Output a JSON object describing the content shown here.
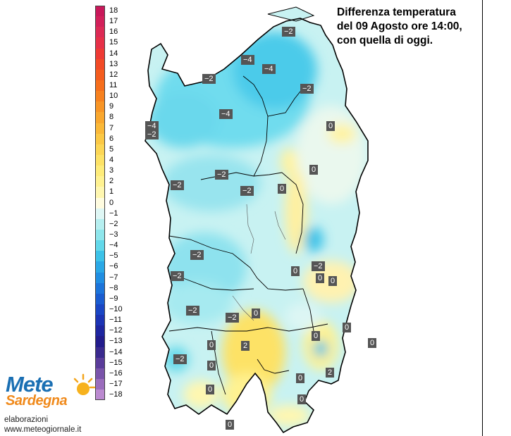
{
  "title": {
    "lines": [
      "Differenza temperatura",
      "del 09 Agosto ore 14:00,",
      "con quella di oggi."
    ]
  },
  "legend": {
    "entries": [
      {
        "label": "18",
        "color": "#c8185a"
      },
      {
        "label": "17",
        "color": "#d2205a"
      },
      {
        "label": "16",
        "color": "#dc2a55"
      },
      {
        "label": "15",
        "color": "#e63048"
      },
      {
        "label": "14",
        "color": "#ee3a34"
      },
      {
        "label": "13",
        "color": "#f24a26"
      },
      {
        "label": "12",
        "color": "#f45c1e"
      },
      {
        "label": "11",
        "color": "#f66e1c"
      },
      {
        "label": "10",
        "color": "#f7811f"
      },
      {
        "label": "9",
        "color": "#f89526"
      },
      {
        "label": "8",
        "color": "#f9a72e"
      },
      {
        "label": "7",
        "color": "#fab838"
      },
      {
        "label": "6",
        "color": "#fbc845"
      },
      {
        "label": "5",
        "color": "#fcd655"
      },
      {
        "label": "4",
        "color": "#fde266"
      },
      {
        "label": "3",
        "color": "#feec7a"
      },
      {
        "label": "2",
        "color": "#fff291"
      },
      {
        "label": "1",
        "color": "#fff7b0"
      },
      {
        "label": "0",
        "color": "#fffce0"
      },
      {
        "label": "−1",
        "color": "#dff7f5"
      },
      {
        "label": "−2",
        "color": "#b6eff0"
      },
      {
        "label": "−3",
        "color": "#8ee6ec"
      },
      {
        "label": "−4",
        "color": "#62d8ea"
      },
      {
        "label": "−5",
        "color": "#3cc2e8"
      },
      {
        "label": "−6",
        "color": "#2aa8e6"
      },
      {
        "label": "−7",
        "color": "#208ee2"
      },
      {
        "label": "−8",
        "color": "#1c74da"
      },
      {
        "label": "−9",
        "color": "#1a5cd0"
      },
      {
        "label": "−10",
        "color": "#1a46c4"
      },
      {
        "label": "−11",
        "color": "#1c34b4"
      },
      {
        "label": "−12",
        "color": "#1e26a0"
      },
      {
        "label": "−13",
        "color": "#221c8c"
      },
      {
        "label": "−14",
        "color": "#3a2a8e"
      },
      {
        "label": "−15",
        "color": "#5a3c9a"
      },
      {
        "label": "−16",
        "color": "#7a54aa"
      },
      {
        "label": "−17",
        "color": "#9a6cbc"
      },
      {
        "label": "−18",
        "color": "#bb8ad0"
      }
    ]
  },
  "map_labels": [
    {
      "text": "−2"
    },
    {
      "text": "−4"
    },
    {
      "text": "−4"
    },
    {
      "text": "−2"
    },
    {
      "text": "−2"
    },
    {
      "text": "−4"
    },
    {
      "text": "−4"
    },
    {
      "text": "−2"
    },
    {
      "text": "0"
    },
    {
      "text": "−2"
    },
    {
      "text": "−2"
    },
    {
      "text": "−2"
    },
    {
      "text": "0"
    },
    {
      "text": "0"
    },
    {
      "text": "−2"
    },
    {
      "text": "−2"
    },
    {
      "text": "0"
    },
    {
      "text": "−2"
    },
    {
      "text": "0"
    },
    {
      "text": "0"
    },
    {
      "text": "−2"
    },
    {
      "text": "−2"
    },
    {
      "text": "0"
    },
    {
      "text": "0"
    },
    {
      "text": "0"
    },
    {
      "text": "2"
    },
    {
      "text": "0"
    },
    {
      "text": "−2"
    },
    {
      "text": "0"
    },
    {
      "text": "2"
    },
    {
      "text": "0"
    },
    {
      "text": "0"
    },
    {
      "text": "0"
    },
    {
      "text": "0"
    }
  ],
  "logo": {
    "line1": "Mete",
    "line2": "Sardegna"
  },
  "credits": {
    "line1": "elaborazioni",
    "line2": "www.meteogiornale.it"
  }
}
